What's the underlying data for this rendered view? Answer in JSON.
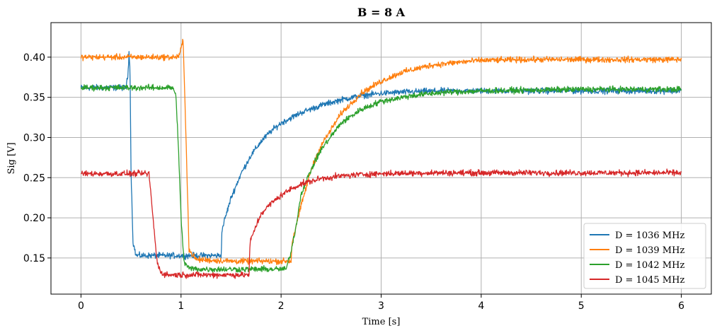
{
  "chart_data": {
    "type": "line",
    "title": "B = 8 A",
    "xlabel": "Time [s]",
    "ylabel": "Sig [V]",
    "xlim": [
      -0.3,
      6.3
    ],
    "ylim": [
      0.105,
      0.443
    ],
    "xticks": [
      0,
      1,
      2,
      3,
      4,
      5,
      6
    ],
    "xtick_labels": [
      "0",
      "1",
      "2",
      "3",
      "4",
      "5",
      "6"
    ],
    "yticks": [
      0.15,
      0.2,
      0.25,
      0.3,
      0.35,
      0.4
    ],
    "ytick_labels": [
      "0.15",
      "0.20",
      "0.25",
      "0.30",
      "0.35",
      "0.40"
    ],
    "grid": true,
    "legend_position": "lower-right",
    "noise_amplitude": 0.0045,
    "series": [
      {
        "name": "D = 1036 MHz",
        "color": "#1f77b4",
        "x": [
          0,
          0.45,
          0.47,
          0.48,
          0.49,
          0.5,
          0.52,
          0.55,
          1.0,
          1.4,
          1.41,
          1.43,
          1.5,
          1.6,
          1.7,
          1.8,
          1.9,
          2.0,
          2.2,
          2.4,
          2.6,
          2.8,
          3.0,
          3.3,
          3.6,
          4.0,
          4.5,
          5.0,
          5.5,
          6.0
        ],
        "y": [
          0.362,
          0.362,
          0.378,
          0.406,
          0.39,
          0.26,
          0.17,
          0.153,
          0.153,
          0.153,
          0.185,
          0.195,
          0.225,
          0.255,
          0.278,
          0.295,
          0.308,
          0.318,
          0.331,
          0.34,
          0.347,
          0.352,
          0.355,
          0.357,
          0.358,
          0.358,
          0.358,
          0.358,
          0.358,
          0.358
        ]
      },
      {
        "name": "D = 1039 MHz",
        "color": "#ff7f0e",
        "x": [
          0,
          0.95,
          0.98,
          1.0,
          1.02,
          1.05,
          1.08,
          1.15,
          1.5,
          2.1,
          2.11,
          2.2,
          2.3,
          2.4,
          2.6,
          2.8,
          3.0,
          3.2,
          3.5,
          3.8,
          4.0,
          4.5,
          5.0,
          5.5,
          6.0
        ],
        "y": [
          0.4,
          0.4,
          0.402,
          0.41,
          0.422,
          0.3,
          0.16,
          0.148,
          0.146,
          0.146,
          0.17,
          0.215,
          0.26,
          0.29,
          0.33,
          0.355,
          0.37,
          0.381,
          0.39,
          0.394,
          0.396,
          0.397,
          0.397,
          0.397,
          0.397
        ]
      },
      {
        "name": "D = 1042 MHz",
        "color": "#2ca02c",
        "x": [
          0,
          0.92,
          0.95,
          0.97,
          1.0,
          1.03,
          1.08,
          1.2,
          1.6,
          2.05,
          2.1,
          2.15,
          2.2,
          2.3,
          2.4,
          2.6,
          2.8,
          3.0,
          3.3,
          3.6,
          4.0,
          4.5,
          5.0,
          5.5,
          6.0
        ],
        "y": [
          0.362,
          0.362,
          0.35,
          0.3,
          0.2,
          0.145,
          0.137,
          0.136,
          0.136,
          0.136,
          0.158,
          0.19,
          0.23,
          0.26,
          0.285,
          0.318,
          0.335,
          0.345,
          0.352,
          0.356,
          0.358,
          0.359,
          0.36,
          0.36,
          0.36
        ]
      },
      {
        "name": "D = 1045 MHz",
        "color": "#d62728",
        "x": [
          0,
          0.68,
          0.72,
          0.76,
          0.8,
          0.85,
          1.2,
          1.68,
          1.69,
          1.75,
          1.8,
          1.9,
          2.0,
          2.1,
          2.2,
          2.4,
          2.6,
          2.8,
          3.0,
          3.5,
          4.0,
          5.0,
          6.0
        ],
        "y": [
          0.255,
          0.255,
          0.2,
          0.145,
          0.132,
          0.129,
          0.129,
          0.129,
          0.17,
          0.19,
          0.205,
          0.218,
          0.228,
          0.236,
          0.242,
          0.249,
          0.252,
          0.254,
          0.255,
          0.256,
          0.256,
          0.256,
          0.256
        ]
      }
    ]
  }
}
